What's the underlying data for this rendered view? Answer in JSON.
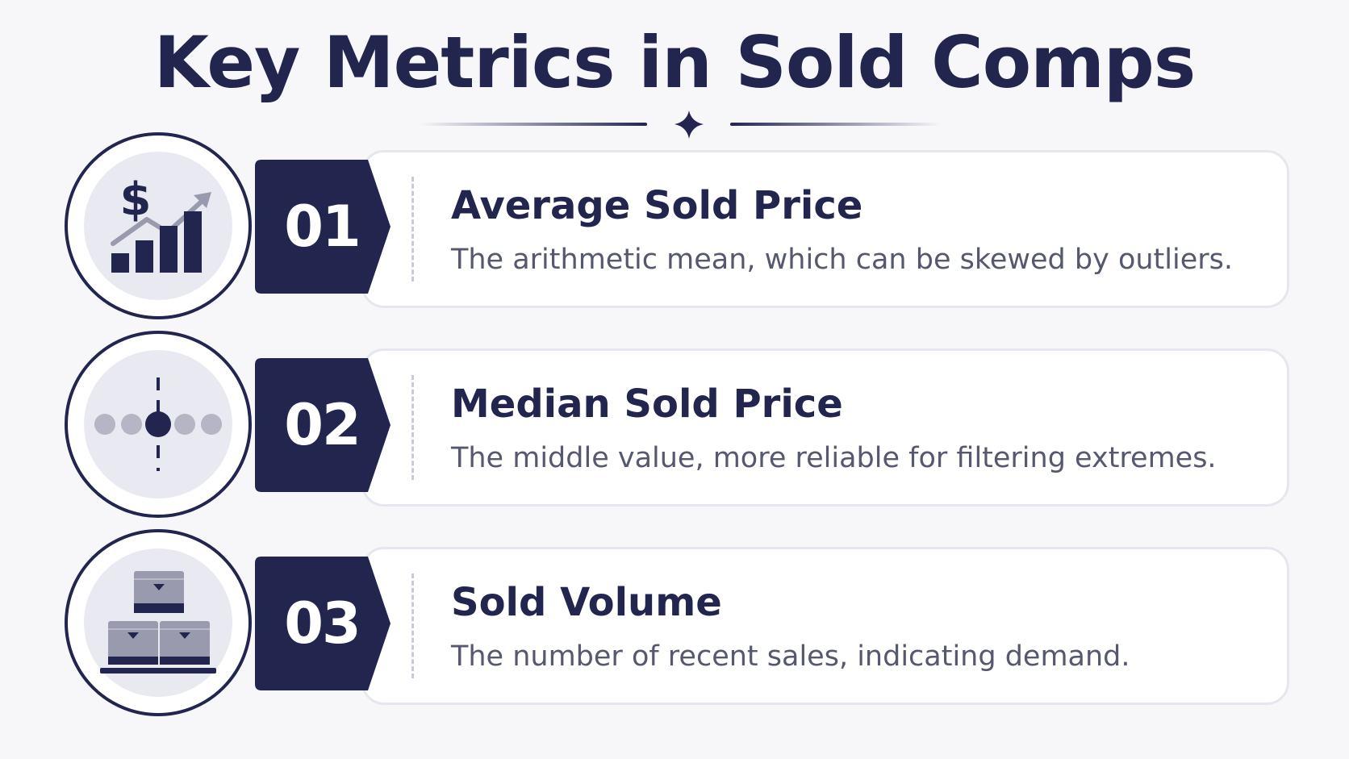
{
  "title": "Key Metrics in Sold Comps",
  "colors": {
    "navy": "#22264f",
    "card_border": "#e6e6ee",
    "icon_bg": "#e9e9f2",
    "muted_text": "#55586e",
    "icon_grey": "#9a9aae"
  },
  "metrics": [
    {
      "number": "01",
      "title": "Average Sold Price",
      "description": "The arithmetic mean, which can be skewed by outliers.",
      "icon": "dollar-chart-icon"
    },
    {
      "number": "02",
      "title": "Median Sold Price",
      "description": "The middle value, more reliable for filtering extremes.",
      "icon": "median-dots-icon"
    },
    {
      "number": "03",
      "title": "Sold Volume",
      "description": "The number of recent sales, indicating demand.",
      "icon": "boxes-icon"
    }
  ]
}
